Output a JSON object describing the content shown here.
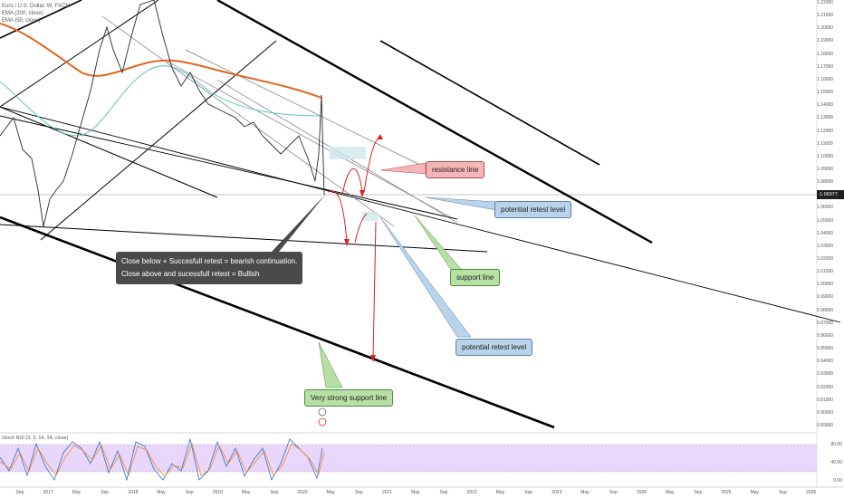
{
  "chart_data": {
    "type": "line",
    "title": "Euro / U.S. Dollar, W, FXCM",
    "indicators": [
      "EMA (200, close)",
      "EMA (50, close)"
    ],
    "current_price": "1.06977",
    "price_axis_labels": [
      "1.22000",
      "1.21000",
      "1.20000",
      "1.19000",
      "1.18000",
      "1.17000",
      "1.16000",
      "1.15000",
      "1.14000",
      "1.13000",
      "1.12000",
      "1.11000",
      "1.10000",
      "1.09000",
      "1.08000",
      "1.07000",
      "1.06000",
      "1.05000",
      "1.04000",
      "1.03000",
      "1.02000",
      "1.01000",
      "1.00000",
      "0.99000",
      "0.98000",
      "0.97000",
      "0.96000",
      "0.95000",
      "0.94000",
      "0.93000",
      "0.92000",
      "0.91000",
      "0.90000",
      "0.89000"
    ],
    "time_axis_labels": [
      "Sep",
      "2017",
      "May",
      "Sep",
      "2018",
      "May",
      "Sep",
      "2019",
      "May",
      "Sep",
      "2020",
      "May",
      "Sep",
      "2021",
      "May",
      "Sep",
      "2022",
      "May",
      "Sep",
      "2023",
      "May",
      "Sep",
      "2024",
      "May",
      "Sep",
      "2025",
      "May",
      "Sep",
      "2026"
    ],
    "price_series": {
      "x": [
        "2016-06",
        "2016-08",
        "2016-10",
        "2016-12",
        "2017-01",
        "2017-03",
        "2017-05",
        "2017-07",
        "2017-09",
        "2017-11",
        "2018-01",
        "2018-02",
        "2018-04",
        "2018-06",
        "2018-08",
        "2018-10",
        "2018-12",
        "2019-02",
        "2019-04",
        "2019-06",
        "2019-08",
        "2019-10",
        "2019-12",
        "2020-02",
        "2020-03",
        "2020-03",
        "2020-04"
      ],
      "y": [
        1.125,
        1.115,
        1.105,
        1.055,
        1.045,
        1.065,
        1.095,
        1.165,
        1.195,
        1.175,
        1.225,
        1.235,
        1.185,
        1.165,
        1.155,
        1.145,
        1.135,
        1.135,
        1.125,
        1.125,
        1.105,
        1.105,
        1.115,
        1.085,
        1.135,
        1.075,
        1.069
      ]
    },
    "ema200_series": {
      "x": [
        "2016-06",
        "2017-01",
        "2017-06",
        "2017-12",
        "2018-06",
        "2018-12",
        "2019-06",
        "2019-12",
        "2020-03"
      ],
      "y": [
        1.215,
        1.205,
        1.185,
        1.17,
        1.168,
        1.166,
        1.158,
        1.15,
        1.143
      ]
    },
    "ema50_series": {
      "x": [
        "2016-06",
        "2017-01",
        "2017-06",
        "2017-12",
        "2018-06",
        "2018-12",
        "2019-06",
        "2019-12",
        "2020-03"
      ],
      "y": [
        1.155,
        1.11,
        1.115,
        1.16,
        1.178,
        1.16,
        1.14,
        1.125,
        1.12
      ]
    },
    "stoch_rsi": {
      "title": "Stoch RSI (3, 3, 14, 14, close)",
      "levels": [
        "80.00",
        "40.00",
        "0.00"
      ]
    },
    "annotations": {
      "strategy_line_1": "Close below + Succesfull retest = bearish continuation.",
      "strategy_line_2": "Close above and sucessfull retest = Bullish",
      "resistance": "resistance line",
      "retest_1": "potential retest level",
      "support": "support line",
      "retest_2": "potential retest level",
      "strong_support": "Very strong support line"
    }
  }
}
